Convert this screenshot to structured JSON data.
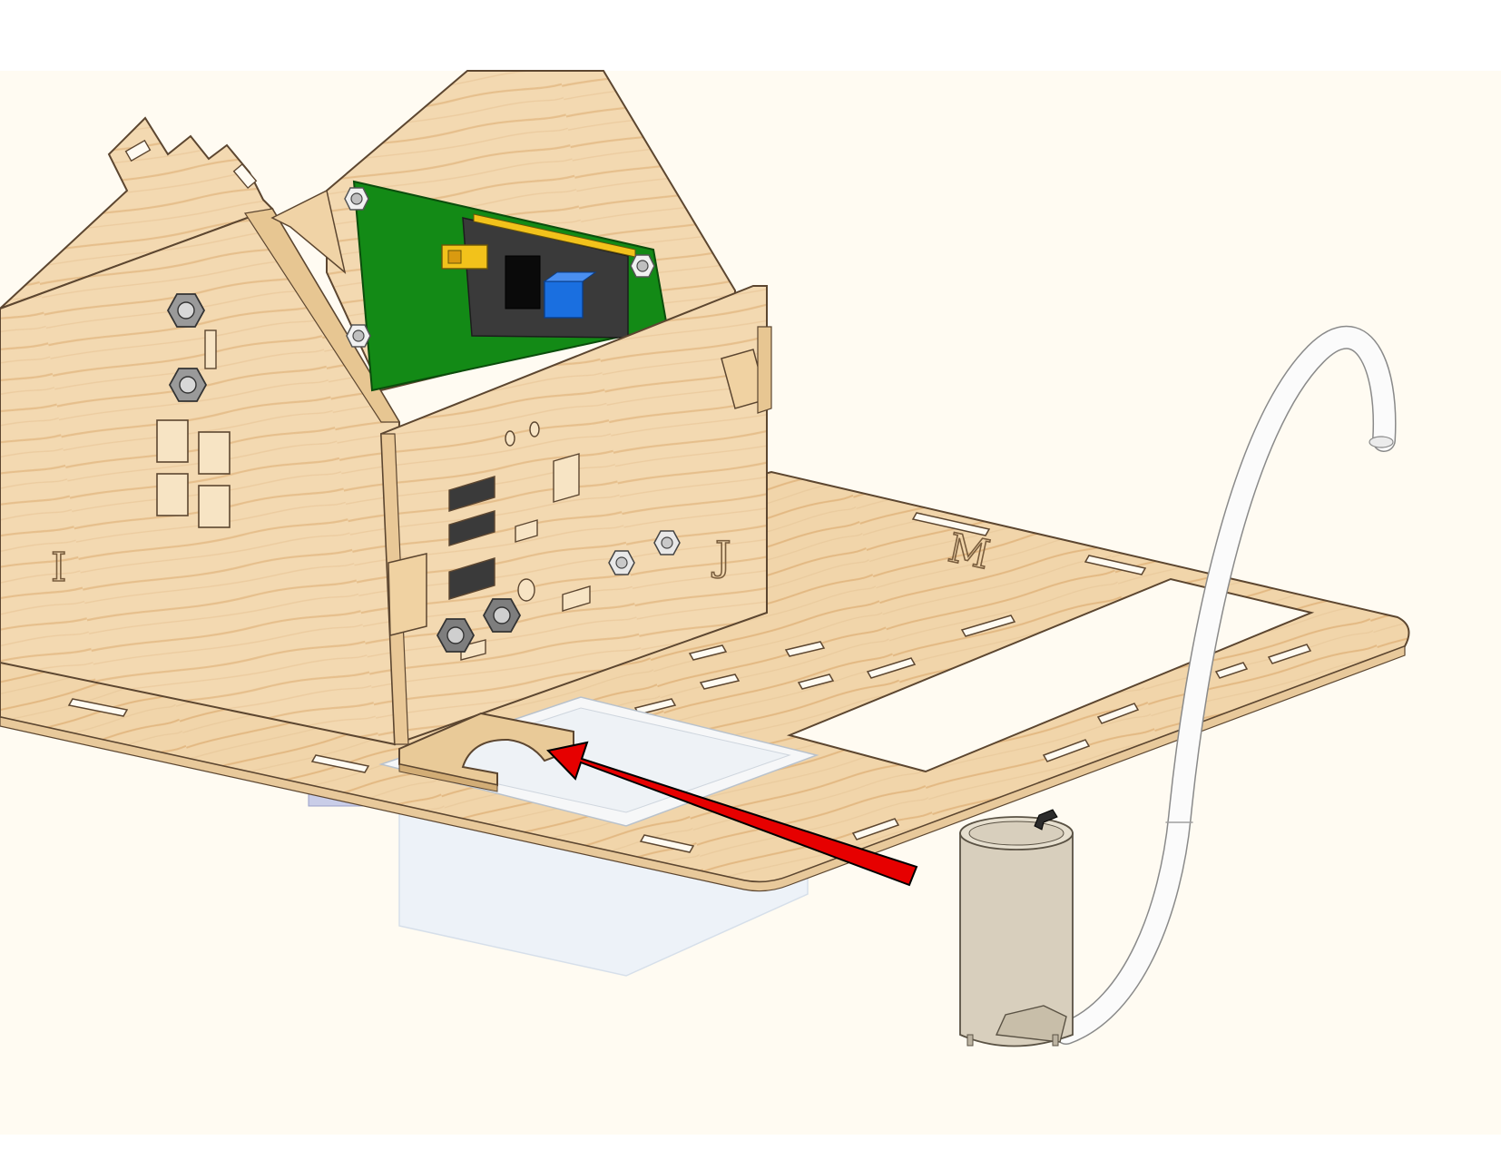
{
  "diagram": {
    "panel_labels": {
      "left_wall": "I",
      "front_wall": "J",
      "base_plate": "M"
    },
    "colors": {
      "page_background": "#ffffff",
      "scene_background": "#fffbf2",
      "wood": "#f3d9b1",
      "wood_grain": "#e7c08e",
      "outline": "#5c4630",
      "pcb_green": "#138a16",
      "module_dark": "#3a3a3a",
      "jumper_yellow": "#f2c21b",
      "potentiometer_blue": "#1a6fe0",
      "arrow_red": "#e60000",
      "water_tank": "#e7eef7",
      "pump_body": "#d8cfbd",
      "tube_white": "#fbfbfb"
    },
    "icons": {
      "arrow": "arrow-left-icon",
      "pump": "water-pump-icon",
      "nut": "hex-nut-icon"
    }
  }
}
